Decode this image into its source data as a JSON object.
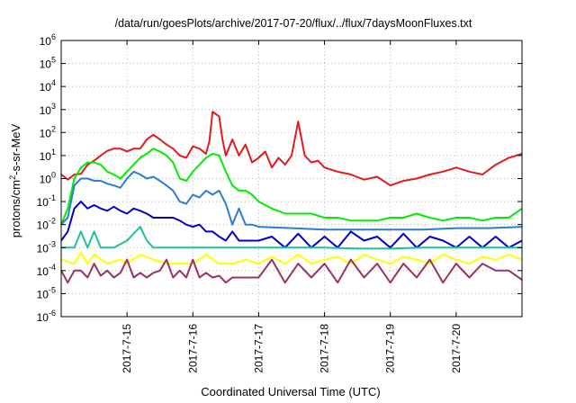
{
  "chart_data": {
    "type": "line",
    "title": "/data/run/goesPlots/archive/2017-07-20/flux/../flux/7daysMoonFluxes.txt",
    "xlabel": "Coordinated Universal Time (UTC)",
    "ylabel": "protons/cm2-s-sr-MeV",
    "ylabel_parts": {
      "before": "protons/cm",
      "sup": "2",
      "after": "-s-sr-MeV"
    },
    "yscale": "log",
    "ylim": [
      1e-06,
      1000000.0
    ],
    "x_unit": "days since 2017-07-14 00:00 UTC",
    "xlim": [
      0,
      7
    ],
    "grid": true,
    "legend": "none",
    "y_ticks": [
      {
        "value": 1e-06,
        "base": "10",
        "exp": "-6"
      },
      {
        "value": 1e-05,
        "base": "10",
        "exp": "-5"
      },
      {
        "value": 0.0001,
        "base": "10",
        "exp": "-4"
      },
      {
        "value": 0.001,
        "base": "10",
        "exp": "-3"
      },
      {
        "value": 0.01,
        "base": "10",
        "exp": "-2"
      },
      {
        "value": 0.1,
        "base": "10",
        "exp": "-1"
      },
      {
        "value": 1,
        "base": "10",
        "exp": "0"
      },
      {
        "value": 10.0,
        "base": "10",
        "exp": "1"
      },
      {
        "value": 100.0,
        "base": "10",
        "exp": "2"
      },
      {
        "value": 1000.0,
        "base": "10",
        "exp": "3"
      },
      {
        "value": 10000.0,
        "base": "10",
        "exp": "4"
      },
      {
        "value": 100000.0,
        "base": "10",
        "exp": "5"
      },
      {
        "value": 1000000.0,
        "base": "10",
        "exp": "6"
      }
    ],
    "x_ticks": [
      {
        "value": 1,
        "label": "2017-7-15"
      },
      {
        "value": 2,
        "label": "2017-7-16"
      },
      {
        "value": 3,
        "label": "2017-7-17"
      },
      {
        "value": 4,
        "label": "2017-7-18"
      },
      {
        "value": 5,
        "label": "2017-7-19"
      },
      {
        "value": 6,
        "label": "2017-7-20"
      }
    ],
    "series": [
      {
        "color": "#e41a1c",
        "x": [
          0,
          0.1,
          0.2,
          0.3,
          0.4,
          0.5,
          0.6,
          0.7,
          0.8,
          0.9,
          1,
          1.1,
          1.2,
          1.3,
          1.4,
          1.5,
          1.6,
          1.7,
          1.8,
          1.9,
          2,
          2.1,
          2.2,
          2.25,
          2.3,
          2.4,
          2.45,
          2.5,
          2.6,
          2.7,
          2.8,
          2.9,
          3,
          3.1,
          3.2,
          3.3,
          3.4,
          3.5,
          3.6,
          3.7,
          3.8,
          3.9,
          4,
          4.2,
          4.4,
          4.6,
          4.8,
          5,
          5.2,
          5.4,
          5.6,
          5.8,
          6,
          6.2,
          6.4,
          6.6,
          6.8,
          7
        ],
        "y": [
          1.5,
          0.9,
          1.5,
          1.6,
          4,
          6,
          10,
          16,
          20,
          20,
          15,
          20,
          20,
          50,
          80,
          50,
          30,
          20,
          10,
          8,
          25,
          20,
          12,
          40,
          800,
          500,
          50,
          10,
          50,
          10,
          30,
          5,
          8,
          15,
          3,
          8,
          4,
          10,
          300,
          10,
          5,
          6,
          3,
          2,
          1.5,
          0.9,
          1.2,
          0.5,
          0.8,
          1,
          1.5,
          2,
          3,
          2,
          1.5,
          4,
          8,
          12
        ]
      },
      {
        "color": "#00ee00",
        "x": [
          0,
          0.1,
          0.2,
          0.3,
          0.4,
          0.5,
          0.6,
          0.7,
          0.8,
          0.9,
          1,
          1.1,
          1.2,
          1.3,
          1.4,
          1.5,
          1.6,
          1.7,
          1.8,
          1.9,
          2,
          2.1,
          2.2,
          2.3,
          2.4,
          2.5,
          2.6,
          2.7,
          2.8,
          2.9,
          3,
          3.2,
          3.4,
          3.6,
          3.8,
          4,
          4.2,
          4.4,
          4.6,
          4.8,
          5,
          5.2,
          5.4,
          5.6,
          5.8,
          6,
          6.2,
          6.4,
          6.6,
          6.8,
          7
        ],
        "y": [
          0.01,
          0.05,
          1,
          3,
          5,
          5,
          4,
          2,
          1.5,
          1,
          2,
          4,
          8,
          12,
          20,
          15,
          10,
          5,
          1,
          0.8,
          2,
          4,
          8,
          12,
          10,
          2,
          0.5,
          0.3,
          0.3,
          0.2,
          0.1,
          0.05,
          0.03,
          0.03,
          0.03,
          0.02,
          0.02,
          0.015,
          0.015,
          0.015,
          0.02,
          0.02,
          0.03,
          0.02,
          0.015,
          0.02,
          0.02,
          0.015,
          0.02,
          0.02,
          0.05
        ]
      },
      {
        "color": "#2a7fd4",
        "x": [
          0,
          0.1,
          0.2,
          0.3,
          0.4,
          0.5,
          0.6,
          0.7,
          0.8,
          0.9,
          1,
          1.1,
          1.2,
          1.3,
          1.4,
          1.5,
          1.6,
          1.7,
          1.8,
          1.9,
          2,
          2.1,
          2.2,
          2.3,
          2.4,
          2.5,
          2.6,
          2.7,
          2.8,
          2.9,
          3,
          3.5,
          4,
          4.5,
          5,
          5.5,
          6,
          6.5,
          7
        ],
        "y": [
          0.01,
          0.02,
          0.5,
          1,
          1,
          0.8,
          0.8,
          0.6,
          0.5,
          0.4,
          1,
          2,
          1.5,
          1,
          1.2,
          0.8,
          0.5,
          0.3,
          0.1,
          0.08,
          0.2,
          0.15,
          0.3,
          0.2,
          0.3,
          0.08,
          0.01,
          0.05,
          0.01,
          0.01,
          0.008,
          0.007,
          0.006,
          0.006,
          0.006,
          0.006,
          0.007,
          0.007,
          0.008
        ]
      },
      {
        "color": "#0000cc",
        "x": [
          0,
          0.1,
          0.2,
          0.3,
          0.4,
          0.5,
          0.6,
          0.7,
          0.8,
          0.9,
          1,
          1.1,
          1.2,
          1.3,
          1.4,
          1.5,
          1.6,
          1.7,
          1.8,
          1.9,
          2,
          2.1,
          2.2,
          2.3,
          2.4,
          2.5,
          2.6,
          2.7,
          2.8,
          2.9,
          3,
          3.2,
          3.4,
          3.6,
          3.8,
          4,
          4.2,
          4.4,
          4.6,
          4.8,
          5,
          5.2,
          5.4,
          5.6,
          5.8,
          6,
          6.2,
          6.4,
          6.6,
          6.8,
          7
        ],
        "y": [
          0.002,
          0.005,
          0.05,
          0.1,
          0.05,
          0.07,
          0.05,
          0.04,
          0.06,
          0.04,
          0.03,
          0.05,
          0.04,
          0.03,
          0.02,
          0.02,
          0.02,
          0.02,
          0.015,
          0.01,
          0.008,
          0.01,
          0.005,
          0.005,
          0.003,
          0.002,
          0.005,
          0.002,
          0.002,
          0.002,
          0.002,
          0.003,
          0.001,
          0.004,
          0.001,
          0.003,
          0.001,
          0.005,
          0.002,
          0.003,
          0.001,
          0.004,
          0.001,
          0.003,
          0.002,
          0.001,
          0.003,
          0.001,
          0.003,
          0.001,
          0.002
        ]
      },
      {
        "color": "#1fbf9f",
        "x": [
          0,
          0.2,
          0.3,
          0.4,
          0.5,
          0.6,
          0.8,
          1,
          1.2,
          1.3,
          1.4,
          1.5,
          1.7,
          2,
          2.5,
          3,
          3.5,
          4,
          4.5,
          5,
          5.5,
          6,
          6.5,
          7
        ],
        "y": [
          0.001,
          0.001,
          0.005,
          0.001,
          0.005,
          0.001,
          0.001,
          0.002,
          0.008,
          0.002,
          0.001,
          0.001,
          0.001,
          0.001,
          0.001,
          0.001,
          0.001,
          0.001,
          0.0009,
          0.0009,
          0.001,
          0.001,
          0.001,
          0.001
        ]
      },
      {
        "color": "#ffff00",
        "x": [
          0,
          0.2,
          0.3,
          0.4,
          0.5,
          0.7,
          0.9,
          1,
          1.2,
          1.4,
          1.6,
          1.8,
          2,
          2.2,
          2.4,
          2.6,
          2.8,
          3,
          3.2,
          3.4,
          3.6,
          3.8,
          4,
          4.2,
          4.4,
          4.6,
          4.8,
          5,
          5.2,
          5.4,
          5.6,
          5.8,
          6,
          6.2,
          6.4,
          6.6,
          6.8,
          7
        ],
        "y": [
          0.0003,
          0.0002,
          0.0006,
          0.0002,
          0.0005,
          0.0002,
          0.0003,
          0.0002,
          0.0005,
          0.0003,
          0.0002,
          0.0002,
          0.0002,
          0.0005,
          0.0002,
          0.0002,
          0.0003,
          0.0002,
          0.0004,
          0.0002,
          0.0005,
          0.0002,
          0.0003,
          0.0004,
          0.0002,
          0.0005,
          0.0003,
          0.0002,
          0.0004,
          0.0003,
          0.0002,
          0.0005,
          0.0003,
          0.0002,
          0.0004,
          0.0003,
          0.0005,
          0.0003
        ]
      },
      {
        "color": "#993366",
        "x": [
          0,
          0.1,
          0.2,
          0.3,
          0.4,
          0.5,
          0.6,
          0.7,
          0.8,
          0.9,
          1,
          1.1,
          1.2,
          1.3,
          1.4,
          1.5,
          1.6,
          1.7,
          1.8,
          1.9,
          2,
          2.1,
          2.2,
          2.3,
          2.4,
          2.5,
          2.6,
          2.7,
          2.8,
          2.9,
          3,
          3.2,
          3.4,
          3.6,
          3.8,
          4,
          4.2,
          4.4,
          4.6,
          4.8,
          5,
          5.2,
          5.4,
          5.6,
          5.8,
          6,
          6.2,
          6.4,
          6.6,
          6.8,
          7
        ],
        "y": [
          0.0001,
          3e-05,
          0.0001,
          0.0001,
          5e-05,
          0.0002,
          6e-05,
          0.0001,
          5e-05,
          8e-05,
          0.0003,
          5e-05,
          8e-05,
          5e-05,
          8e-05,
          0.0001,
          0.0003,
          5e-05,
          0.0001,
          5e-05,
          0.0003,
          5e-05,
          8e-05,
          5e-05,
          6e-05,
          3e-05,
          5e-05,
          5e-05,
          5e-05,
          5e-05,
          5e-05,
          0.0003,
          3e-05,
          0.0002,
          5e-05,
          0.0002,
          3e-05,
          0.0003,
          5e-05,
          0.0002,
          3e-05,
          0.0002,
          5e-05,
          0.0003,
          3e-05,
          0.0002,
          5e-05,
          0.0002,
          0.0001,
          0.0001,
          4e-05
        ]
      }
    ]
  }
}
